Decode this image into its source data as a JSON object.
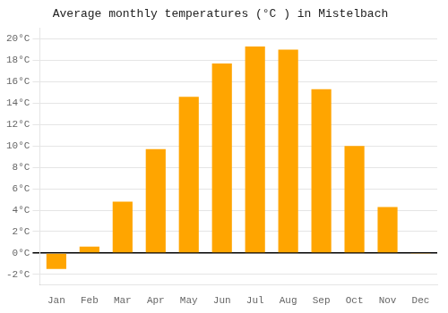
{
  "chart_data": {
    "type": "bar",
    "title": "Average monthly temperatures (°C ) in Mistelbach",
    "categories": [
      "Jan",
      "Feb",
      "Mar",
      "Apr",
      "May",
      "Jun",
      "Jul",
      "Aug",
      "Sep",
      "Oct",
      "Nov",
      "Dec"
    ],
    "values": [
      -1.5,
      0.6,
      4.8,
      9.7,
      14.6,
      17.7,
      19.3,
      19.0,
      15.3,
      10.0,
      4.3,
      -0.1
    ],
    "color": "#FFA500",
    "ylim": [
      -3,
      21
    ],
    "yticks": [
      {
        "value": -2,
        "label": "-2°C"
      },
      {
        "value": 0,
        "label": "0°C"
      },
      {
        "value": 2,
        "label": "2°C"
      },
      {
        "value": 4,
        "label": "4°C"
      },
      {
        "value": 6,
        "label": "6°C"
      },
      {
        "value": 8,
        "label": "8°C"
      },
      {
        "value": 10,
        "label": "10°C"
      },
      {
        "value": 12,
        "label": "12°C"
      },
      {
        "value": 14,
        "label": "14°C"
      },
      {
        "value": 16,
        "label": "16°C"
      },
      {
        "value": 18,
        "label": "18°C"
      },
      {
        "value": 20,
        "label": "20°C"
      }
    ],
    "grid": true
  }
}
